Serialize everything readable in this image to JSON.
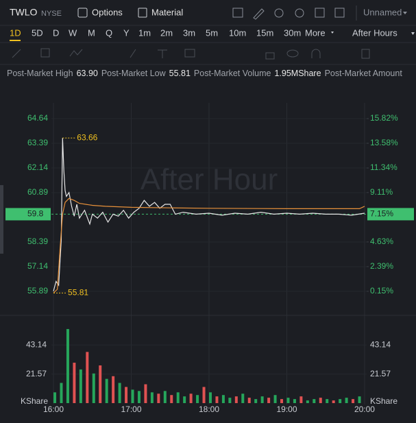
{
  "header": {
    "symbol": "TWLO",
    "exchange": "NYSE",
    "options": "Options",
    "material": "Material",
    "layout": "Unnamed"
  },
  "periods": [
    "1D",
    "5D",
    "D",
    "W",
    "M",
    "Q",
    "Y",
    "1m",
    "2m",
    "3m",
    "5m",
    "10m",
    "15m",
    "30m",
    "More"
  ],
  "session": "After Hours",
  "stats": [
    {
      "label": "Post-Market High",
      "value": "63.90"
    },
    {
      "label": "Post-Market Low",
      "value": "55.81"
    },
    {
      "label": "Post-Market Volume",
      "value": "1.95MShare"
    },
    {
      "label": "Post-Market Amount",
      "value": ""
    }
  ],
  "chart_data": [
    {
      "type": "line",
      "watermark": "After Hour",
      "x": [
        0,
        2,
        4,
        6,
        7,
        8,
        9,
        10,
        12,
        14,
        16,
        18,
        20,
        24,
        28,
        30,
        34,
        38,
        42,
        46,
        50,
        54,
        58,
        62,
        66,
        70,
        74,
        78,
        82,
        86,
        90,
        94,
        100,
        110,
        120,
        130,
        140,
        150,
        160,
        170,
        180,
        190,
        200,
        210,
        220,
        230,
        240
      ],
      "series": [
        {
          "name": "Price",
          "color": "#e6e6e6",
          "values": [
            55.9,
            56.4,
            56.2,
            58.5,
            63.66,
            62.0,
            61.0,
            60.7,
            60.9,
            60.2,
            59.7,
            60.3,
            59.6,
            60.0,
            59.3,
            59.8,
            59.6,
            59.9,
            59.4,
            59.8,
            59.7,
            60.0,
            59.6,
            59.9,
            60.1,
            60.5,
            60.2,
            60.4,
            60.1,
            60.3,
            60.3,
            59.8,
            59.9,
            59.8,
            59.85,
            59.75,
            59.85,
            59.8,
            59.9,
            59.8,
            59.85,
            59.8,
            59.85,
            59.8,
            59.8,
            59.75,
            59.85
          ]
        },
        {
          "name": "Average",
          "color": "#e8913a",
          "x": [
            0,
            3,
            5,
            7,
            9,
            12,
            16,
            20,
            30,
            40,
            60,
            90,
            120,
            180,
            236,
            240
          ],
          "values": [
            55.81,
            56.0,
            58.0,
            59.8,
            60.4,
            60.6,
            60.5,
            60.35,
            60.25,
            60.2,
            60.15,
            60.12,
            60.1,
            60.08,
            60.08,
            60.2
          ]
        }
      ],
      "xlim": [
        -1.6,
        241.6
      ],
      "xticks": [
        {
          "value": 0,
          "label": "16:00"
        },
        {
          "value": 60,
          "label": "17:00"
        },
        {
          "value": 120,
          "label": "18:00"
        },
        {
          "value": 180,
          "label": "19:00"
        },
        {
          "value": 240,
          "label": "20:00"
        }
      ],
      "ylim": [
        54.85,
        65.44
      ],
      "yticks": [
        64.64,
        63.39,
        62.14,
        60.89,
        59.8,
        58.39,
        57.14,
        55.89
      ],
      "y2lim": [
        -1.72,
        17.25
      ],
      "y2ticks": [
        {
          "value": 15.82,
          "label": "15.82%"
        },
        {
          "value": 13.58,
          "label": "13.58%"
        },
        {
          "value": 11.34,
          "label": "11.34%"
        },
        {
          "value": 9.11,
          "label": "9.11%"
        },
        {
          "value": 7.15,
          "label": "7.15%"
        },
        {
          "value": 4.63,
          "label": "4.63%"
        },
        {
          "value": 2.39,
          "label": "2.39%"
        },
        {
          "value": 0.15,
          "label": "0.15%"
        }
      ],
      "current_price": 59.8,
      "annotations": [
        {
          "x": 7,
          "value": 63.66
        },
        {
          "x": 0,
          "value": 55.81
        }
      ],
      "tick_color": "#3fbf6f",
      "annotation_color": "#f0c020"
    },
    {
      "type": "bar",
      "unit": "KShare",
      "x": [
        0,
        5,
        10,
        15,
        20,
        25,
        30,
        35,
        40,
        45,
        50,
        55,
        60,
        65,
        70,
        75,
        80,
        85,
        90,
        95,
        100,
        105,
        110,
        115,
        120,
        125,
        130,
        135,
        140,
        145,
        150,
        155,
        160,
        165,
        170,
        175,
        180,
        185,
        190,
        195,
        200,
        205,
        210,
        215,
        220,
        225,
        230,
        235
      ],
      "values": [
        8,
        15,
        55,
        30,
        25,
        38,
        22,
        28,
        18,
        20,
        15,
        12,
        10,
        9,
        14,
        8,
        7,
        9,
        6,
        8,
        5,
        7,
        6,
        12,
        8,
        5,
        6,
        4,
        5,
        7,
        4,
        3,
        5,
        4,
        6,
        3,
        4,
        3,
        5,
        2,
        3,
        4,
        3,
        2,
        3,
        4,
        3,
        5
      ],
      "colors": [
        "#26a65b",
        "#26a65b",
        "#26a65b",
        "#e05252",
        "#26a65b",
        "#e05252",
        "#26a65b",
        "#e05252",
        "#26a65b",
        "#e05252",
        "#26a65b",
        "#e05252",
        "#26a65b",
        "#26a65b",
        "#e05252",
        "#26a65b",
        "#e05252",
        "#26a65b",
        "#e05252",
        "#26a65b",
        "#26a65b",
        "#e05252",
        "#26a65b",
        "#e05252",
        "#26a65b",
        "#e05252",
        "#26a65b",
        "#26a65b",
        "#e05252",
        "#26a65b",
        "#e05252",
        "#26a65b",
        "#26a65b",
        "#e05252",
        "#26a65b",
        "#e05252",
        "#26a65b",
        "#26a65b",
        "#e05252",
        "#26a65b",
        "#26a65b",
        "#e05252",
        "#26a65b",
        "#e05252",
        "#26a65b",
        "#26a65b",
        "#e05252",
        "#26a65b"
      ],
      "xlim": [
        -1.6,
        241.6
      ],
      "ylim": [
        0,
        62.6
      ],
      "yticks": [
        43.14,
        21.57
      ]
    }
  ]
}
